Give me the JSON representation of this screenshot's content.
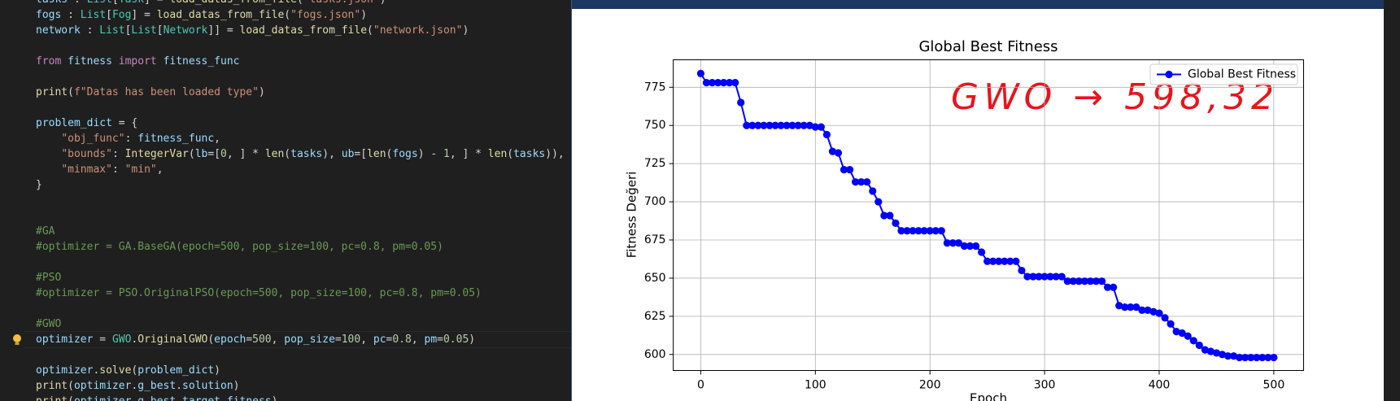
{
  "editor": {
    "blocks": [
      [
        "tasks : List[Task] = load_datas_from_file(\"tasks.json\")",
        "fogs : List[Fog] = load_datas_from_file(\"fogs.json\")",
        "network : List[List[Network]] = load_datas_from_file(\"network.json\")"
      ],
      [
        "from fitness import fitness_func"
      ],
      [
        "print(f\"Datas has been loaded type\")"
      ],
      [
        "problem_dict = {",
        "    \"obj_func\": fitness_func,",
        "    \"bounds\": IntegerVar(lb=[0, ] * len(tasks), ub=[len(fogs) - 1, ] * len(tasks)),",
        "    \"minmax\": \"min\",",
        "}"
      ],
      [
        "#GA",
        "#optimizer = GA.BaseGA(epoch=500, pop_size=100, pc=0.8, pm=0.05)"
      ],
      [
        "#PSO",
        "#optimizer = PSO.OriginalPSO(epoch=500, pop_size=100, pc=0.8, pm=0.05)"
      ],
      [
        "#GWO",
        "optimizer = GWO.OriginalGWO(epoch=500, pop_size=100, pc=0.8, pm=0.05)"
      ],
      [
        "optimizer.solve(problem_dict)",
        "print(optimizer.g_best.solution)",
        "print(optimizer.g_best.target.fitness)"
      ]
    ]
  },
  "chart_data": {
    "type": "line",
    "title": "Global Best Fitness",
    "x_label": "Epoch",
    "y_label": "Fitness Değeri",
    "annotation": "GWO → 598,32",
    "x": [
      0,
      5,
      10,
      15,
      20,
      25,
      30,
      35,
      40,
      45,
      50,
      55,
      60,
      65,
      70,
      75,
      80,
      85,
      90,
      95,
      100,
      105,
      110,
      115,
      120,
      125,
      130,
      135,
      140,
      145,
      150,
      155,
      160,
      165,
      170,
      175,
      180,
      185,
      190,
      195,
      200,
      205,
      210,
      215,
      220,
      225,
      230,
      235,
      240,
      245,
      250,
      255,
      260,
      265,
      270,
      275,
      280,
      285,
      290,
      295,
      300,
      305,
      310,
      315,
      320,
      325,
      330,
      335,
      340,
      345,
      350,
      355,
      360,
      365,
      370,
      375,
      380,
      385,
      390,
      395,
      400,
      405,
      410,
      415,
      420,
      425,
      430,
      435,
      440,
      445,
      450,
      455,
      460,
      465,
      470,
      475,
      480,
      485,
      490,
      495,
      500
    ],
    "series": [
      {
        "name": "Global Best Fitness",
        "color": "#0000ff",
        "values": [
          784,
          778,
          778,
          778,
          778,
          778,
          778,
          765,
          750,
          750,
          750,
          750,
          750,
          750,
          750,
          750,
          750,
          750,
          750,
          750,
          749,
          749,
          744,
          733,
          732,
          721,
          721,
          713,
          713,
          713,
          707,
          700,
          691,
          691,
          686,
          681,
          681,
          681,
          681,
          681,
          681,
          681,
          681,
          673,
          673,
          673,
          671,
          671,
          671,
          667,
          661,
          661,
          661,
          661,
          661,
          661,
          655,
          651,
          651,
          651,
          651,
          651,
          651,
          651,
          648,
          648,
          648,
          648,
          648,
          648,
          648,
          644,
          644,
          632,
          631,
          631,
          631,
          629,
          629,
          628,
          627,
          624,
          620,
          615,
          614,
          612,
          609,
          606,
          603,
          602,
          601,
          600,
          599,
          599,
          598,
          598,
          598,
          598,
          598,
          598,
          598
        ]
      }
    ],
    "xlim": [
      -24,
      526
    ],
    "ylim": [
      589.5,
      793
    ],
    "xticks": [
      0,
      100,
      200,
      300,
      400,
      500
    ],
    "yticks": [
      600,
      625,
      650,
      675,
      700,
      725,
      750,
      775
    ],
    "grid": true,
    "legend": "upper right"
  }
}
